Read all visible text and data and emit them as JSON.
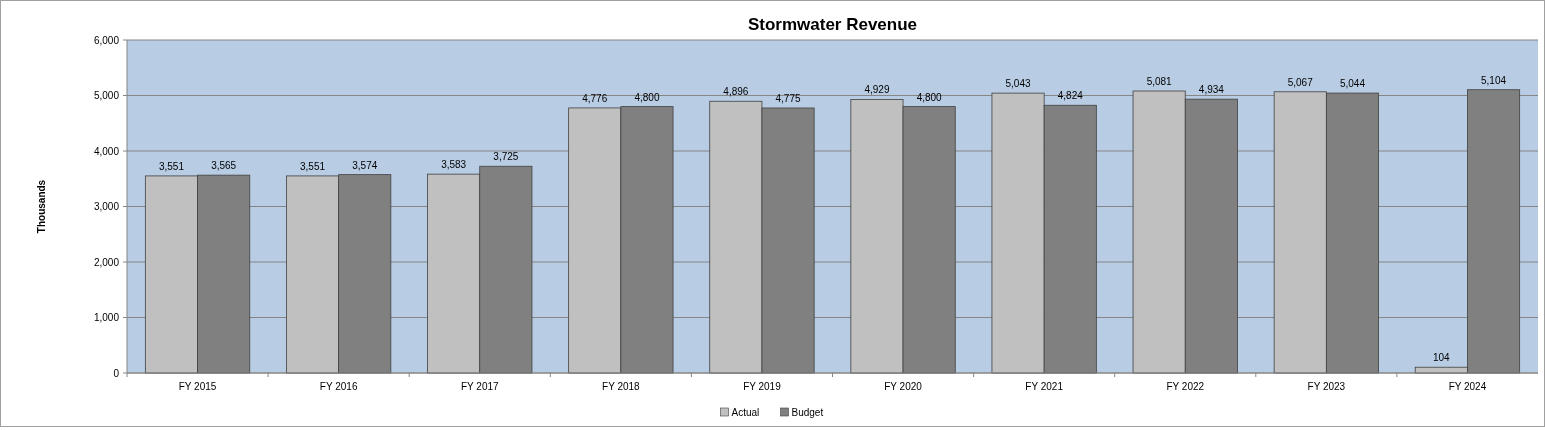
{
  "chart_data": {
    "type": "bar",
    "title": "Stormwater Revenue",
    "ylabel": "Thousands",
    "categories": [
      "FY 2015",
      "FY 2016",
      "FY 2017",
      "FY 2018",
      "FY 2019",
      "FY 2020",
      "FY 2021",
      "FY 2022",
      "FY 2023",
      "FY 2024"
    ],
    "series": [
      {
        "name": "Actual",
        "color": "#c0c0c0",
        "values": [
          3551,
          3551,
          3583,
          4776,
          4896,
          4929,
          5043,
          5081,
          5067,
          104
        ],
        "value_labels": [
          "3,551",
          "3,551",
          "3,583",
          "4,776",
          "4,896",
          "4,929",
          "5,043",
          "5,081",
          "5,067",
          "104"
        ]
      },
      {
        "name": "Budget",
        "color": "#808080",
        "values": [
          3565,
          3574,
          3725,
          4800,
          4775,
          4800,
          4824,
          4934,
          5044,
          5104
        ],
        "value_labels": [
          "3,565",
          "3,574",
          "3,725",
          "4,800",
          "4,775",
          "4,800",
          "4,824",
          "4,934",
          "5,044",
          "5,104"
        ]
      }
    ],
    "ylim": [
      0,
      6000
    ],
    "yticks": [
      {
        "value": 0,
        "label": "0"
      },
      {
        "value": 1000,
        "label": "1,000"
      },
      {
        "value": 2000,
        "label": "2,000"
      },
      {
        "value": 3000,
        "label": "3,000"
      },
      {
        "value": 4000,
        "label": "4,000"
      },
      {
        "value": 5000,
        "label": "5,000"
      },
      {
        "value": 6000,
        "label": "6,000"
      }
    ],
    "grid": "y",
    "legend": "bottom"
  }
}
